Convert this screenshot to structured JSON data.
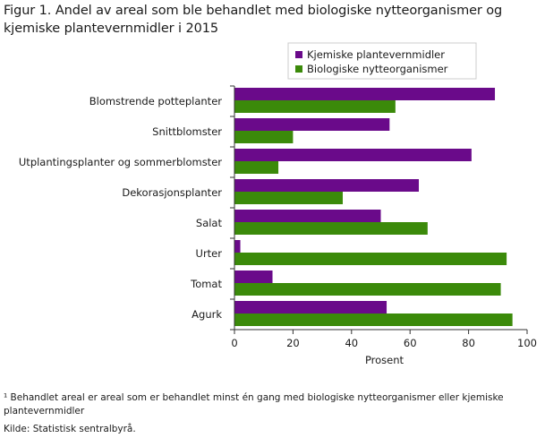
{
  "title": "Figur 1. Andel av areal som ble behandlet med biologiske nytteorganismer og kjemiske plantevernmidler i 2015",
  "footnote": "¹ Behandlet areal er areal som er behandlet minst én gang med biologiske nytteorganismer eller kjemiske plantevernmidler",
  "source": "Kilde: Statistisk sentralbyrå.",
  "chart_data": {
    "type": "bar",
    "orientation": "horizontal",
    "title": "Figur 1. Andel av areal som ble behandlet med biologiske nytteorganismer og kjemiske plantevernmidler i 2015",
    "xlabel": "Prosent",
    "ylabel": "",
    "xlim": [
      0,
      100
    ],
    "xticks": [
      0,
      20,
      40,
      60,
      80,
      100
    ],
    "grid": false,
    "legend_position": "top-right",
    "categories": [
      "Blomstrende potteplanter",
      "Snittblomster",
      "Utplantingsplanter og sommerblomster",
      "Dekorasjonsplanter",
      "Salat",
      "Urter",
      "Tomat",
      "Agurk"
    ],
    "series": [
      {
        "name": "Kjemiske plantevernmidler",
        "color": "#6a0a8a",
        "values": [
          89,
          53,
          81,
          63,
          50,
          2,
          13,
          52
        ]
      },
      {
        "name": "Biologiske nytteorganismer",
        "color": "#3b8a0a",
        "values": [
          55,
          20,
          15,
          37,
          66,
          93,
          91,
          95
        ]
      }
    ]
  }
}
